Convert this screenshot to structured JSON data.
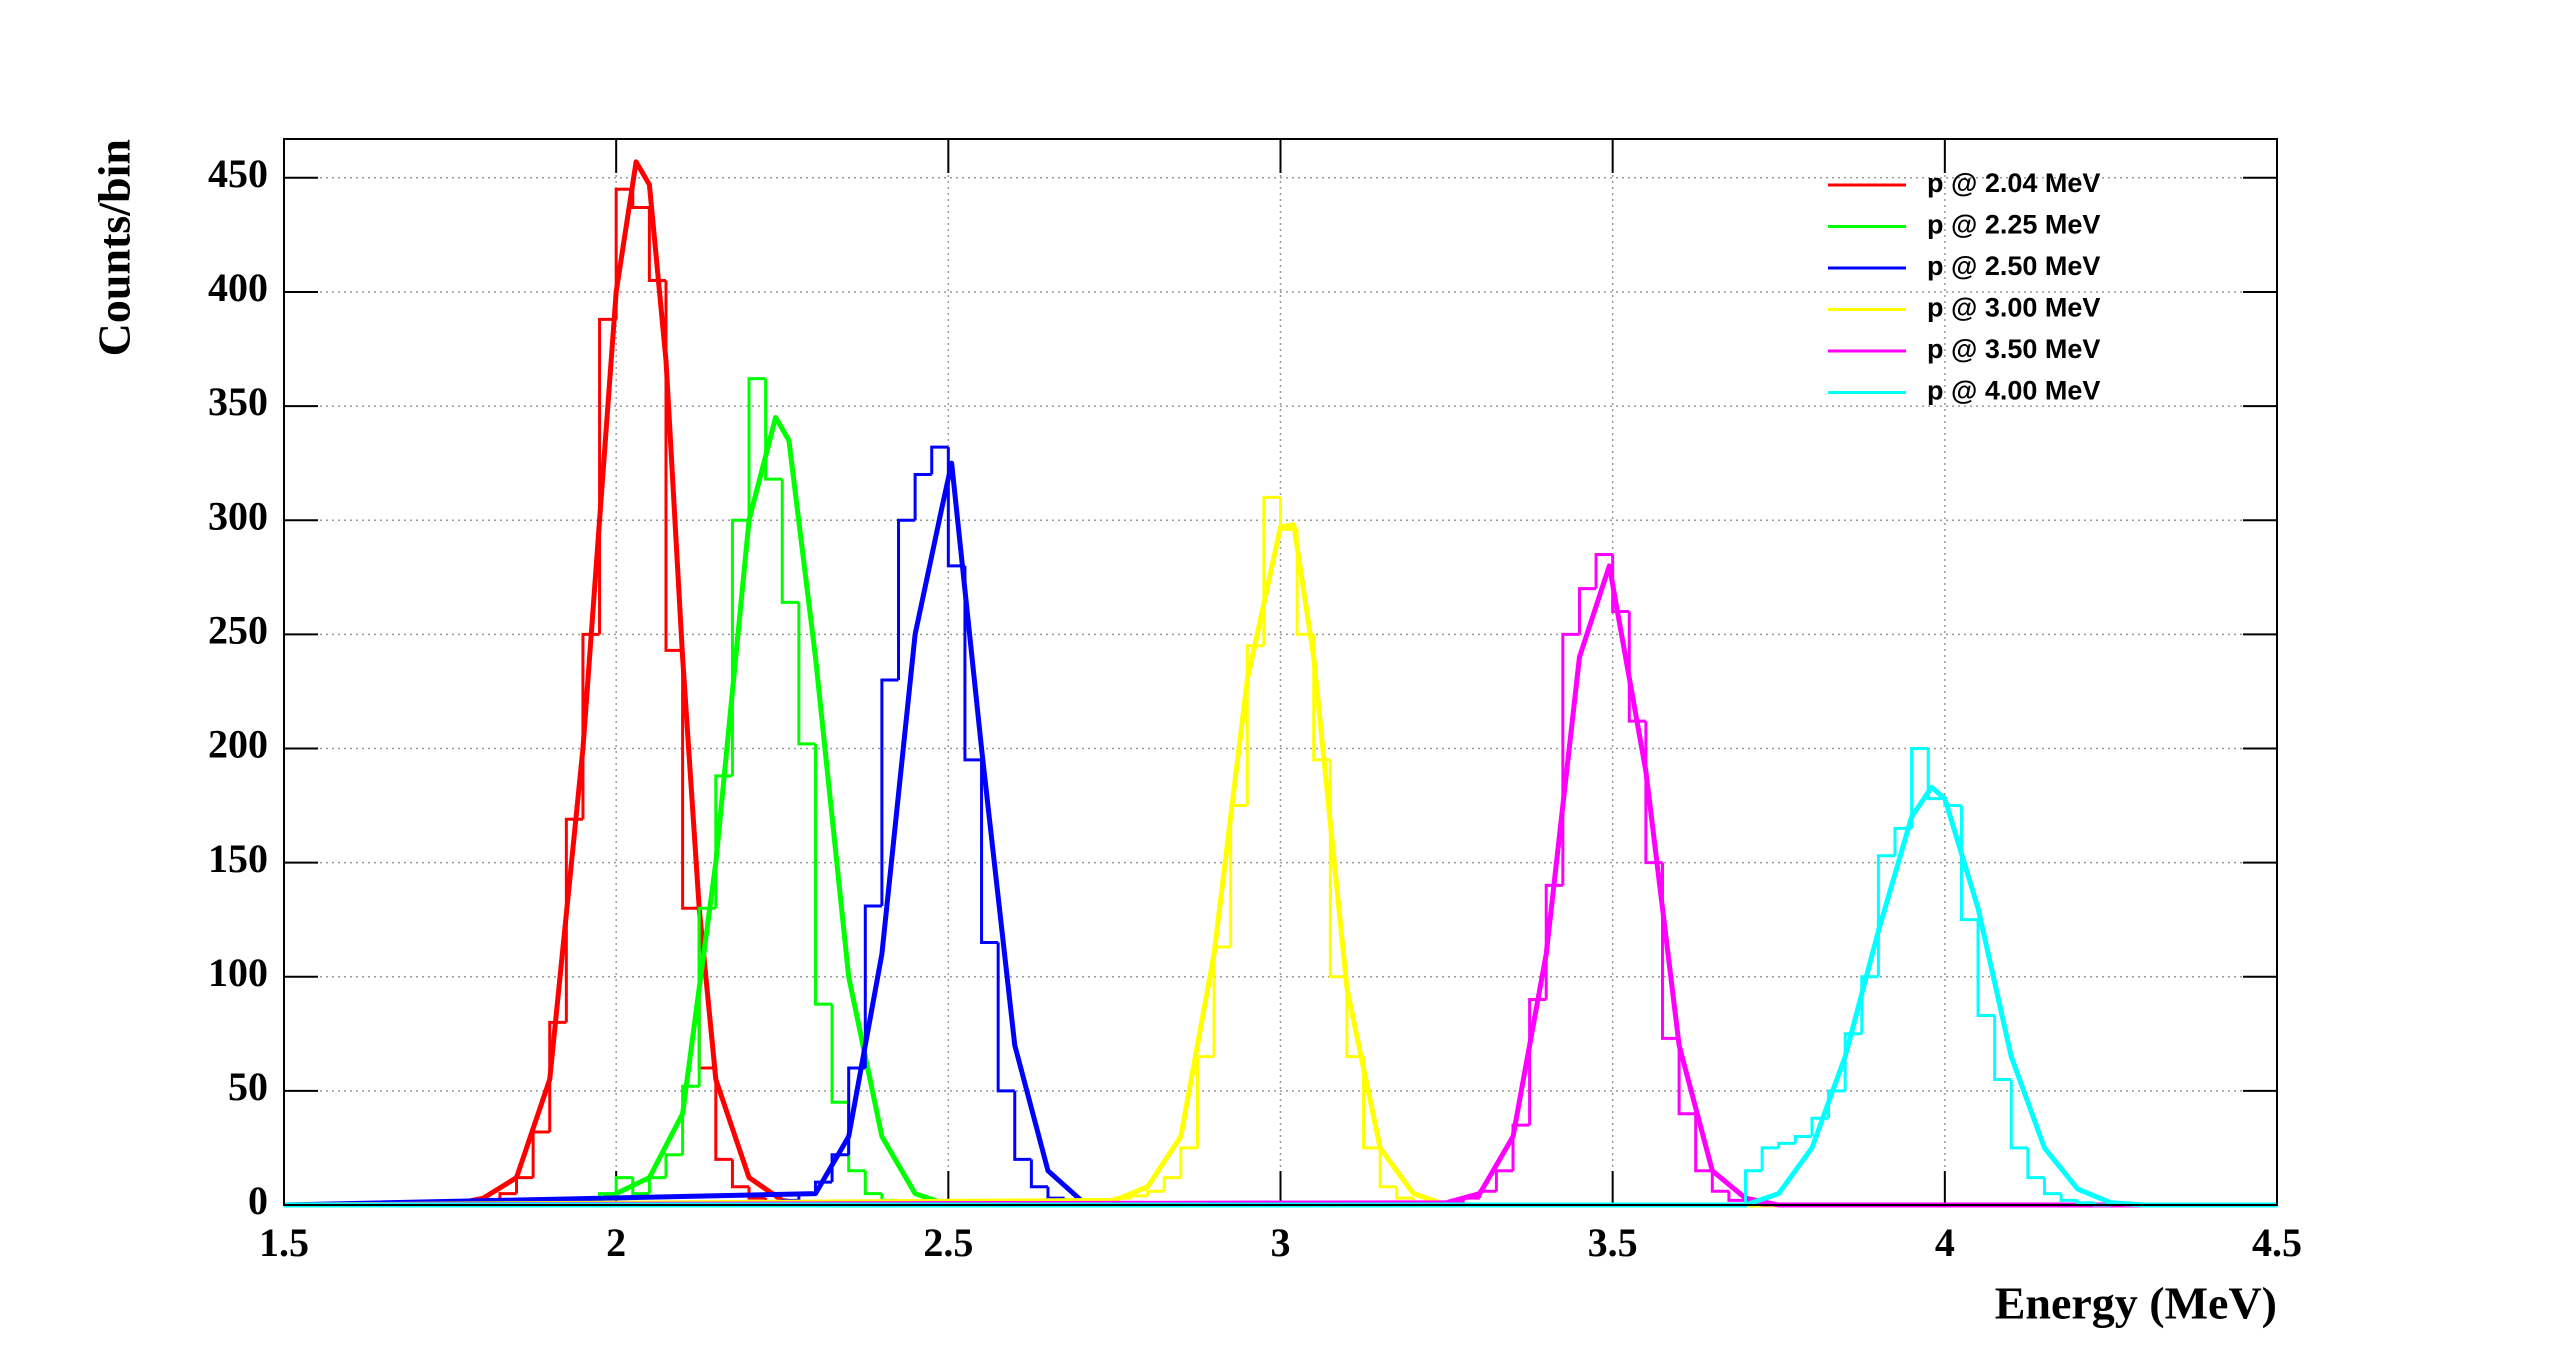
{
  "chart_data": {
    "type": "histogram",
    "xlabel": "Energy (MeV)",
    "ylabel": "Counts/bin",
    "xlim": [
      1.5,
      4.5
    ],
    "ylim": [
      0,
      467
    ],
    "xticks": [
      1.5,
      2,
      2.5,
      3,
      3.5,
      4,
      4.5
    ],
    "yticks": [
      0,
      50,
      100,
      150,
      200,
      250,
      300,
      350,
      400,
      450
    ],
    "grid": true,
    "legend": "top-right",
    "series": [
      {
        "name": "p @ 2.04 MeV",
        "color": "#ff0000",
        "bins": [
          1.8,
          1.825,
          1.85,
          1.875,
          1.9,
          1.925,
          1.95,
          1.975,
          2.0,
          2.025,
          2.05,
          2.075,
          2.1,
          2.125,
          2.15,
          2.175,
          2.2,
          2.225,
          2.25
        ],
        "values": [
          2,
          5,
          12,
          32,
          80,
          169,
          250,
          388,
          445,
          437,
          405,
          243,
          130,
          60,
          20,
          8,
          3,
          0
        ],
        "fit": {
          "x": [
            1.5,
            1.75,
            1.8,
            1.85,
            1.9,
            1.95,
            1.975,
            2.0,
            2.03,
            2.05,
            2.075,
            2.1,
            2.125,
            2.15,
            2.2,
            2.25,
            2.3,
            4.5
          ],
          "values": [
            0,
            0,
            3,
            12,
            55,
            200,
            300,
            400,
            457,
            447,
            370,
            240,
            130,
            55,
            12,
            2,
            0,
            0
          ]
        }
      },
      {
        "name": "p @ 2.25 MeV",
        "color": "#00ff00",
        "bins": [
          1.95,
          1.975,
          2.0,
          2.025,
          2.05,
          2.075,
          2.1,
          2.125,
          2.15,
          2.175,
          2.2,
          2.225,
          2.25,
          2.275,
          2.3,
          2.325,
          2.35,
          2.375,
          2.4,
          2.425,
          2.45
        ],
        "values": [
          3,
          5,
          12,
          5,
          12,
          22,
          52,
          130,
          188,
          300,
          362,
          318,
          264,
          202,
          88,
          45,
          15,
          5,
          2,
          0
        ],
        "fit": {
          "x": [
            1.5,
            1.95,
            2.0,
            2.05,
            2.1,
            2.15,
            2.2,
            2.24,
            2.26,
            2.3,
            2.35,
            2.4,
            2.45,
            2.5,
            4.5
          ],
          "values": [
            0,
            0,
            5,
            12,
            40,
            150,
            300,
            345,
            335,
            240,
            100,
            30,
            5,
            0,
            0
          ]
        }
      },
      {
        "name": "p @ 2.50 MeV",
        "color": "#0000ff",
        "bins": [
          2.25,
          2.275,
          2.3,
          2.325,
          2.35,
          2.375,
          2.4,
          2.425,
          2.45,
          2.475,
          2.5,
          2.525,
          2.55,
          2.575,
          2.6,
          2.625,
          2.65,
          2.675,
          2.7,
          2.725
        ],
        "values": [
          2,
          5,
          10,
          22,
          60,
          131,
          230,
          300,
          320,
          332,
          280,
          195,
          115,
          50,
          20,
          8,
          3,
          1,
          0
        ],
        "fit": {
          "x": [
            1.5,
            2.3,
            2.35,
            2.4,
            2.45,
            2.49,
            2.505,
            2.55,
            2.6,
            2.65,
            2.7,
            2.75,
            4.5
          ],
          "values": [
            0,
            5,
            30,
            110,
            250,
            305,
            325,
            200,
            70,
            15,
            2,
            0,
            0
          ]
        }
      },
      {
        "name": "p @ 3.00 MeV",
        "color": "#ffff00",
        "bins": [
          2.75,
          2.775,
          2.8,
          2.825,
          2.85,
          2.875,
          2.9,
          2.925,
          2.95,
          2.975,
          3.0,
          3.025,
          3.05,
          3.075,
          3.1,
          3.125,
          3.15,
          3.175,
          3.2,
          3.225,
          3.25
        ],
        "values": [
          3,
          4,
          6,
          12,
          25,
          65,
          113,
          175,
          245,
          310,
          296,
          250,
          195,
          100,
          65,
          25,
          8,
          3,
          1,
          0
        ],
        "fit": {
          "x": [
            1.5,
            2.75,
            2.8,
            2.85,
            2.9,
            2.95,
            3.0,
            3.02,
            3.05,
            3.1,
            3.15,
            3.2,
            3.25,
            4.5
          ],
          "values": [
            0,
            2,
            8,
            30,
            110,
            230,
            297,
            298,
            240,
            95,
            25,
            5,
            0,
            0
          ]
        }
      },
      {
        "name": "p @ 3.50 MeV",
        "color": "#ff00ff",
        "bins": [
          3.25,
          3.275,
          3.3,
          3.325,
          3.35,
          3.375,
          3.4,
          3.425,
          3.45,
          3.475,
          3.5,
          3.525,
          3.55,
          3.575,
          3.6,
          3.625,
          3.65,
          3.675,
          3.7,
          3.725,
          3.75
        ],
        "values": [
          1,
          3,
          6,
          15,
          35,
          90,
          140,
          250,
          270,
          285,
          260,
          212,
          150,
          73,
          40,
          15,
          6,
          2,
          1,
          0
        ],
        "fit": {
          "x": [
            1.5,
            3.25,
            3.3,
            3.35,
            3.4,
            3.45,
            3.495,
            3.55,
            3.6,
            3.65,
            3.7,
            3.75,
            4.5
          ],
          "values": [
            0,
            1,
            5,
            30,
            110,
            240,
            280,
            190,
            70,
            15,
            3,
            0,
            0
          ]
        }
      },
      {
        "name": "p @ 4.00 MeV",
        "color": "#00ffff",
        "bins": [
          3.7,
          3.725,
          3.75,
          3.775,
          3.8,
          3.825,
          3.85,
          3.875,
          3.9,
          3.925,
          3.95,
          3.975,
          4.0,
          4.025,
          4.05,
          4.075,
          4.1,
          4.125,
          4.15,
          4.175,
          4.2,
          4.225,
          4.25
        ],
        "values": [
          15,
          25,
          27,
          30,
          38,
          50,
          75,
          100,
          153,
          165,
          200,
          178,
          175,
          125,
          83,
          55,
          25,
          12,
          5,
          2,
          1,
          0
        ],
        "fit": {
          "x": [
            1.5,
            3.7,
            3.75,
            3.8,
            3.85,
            3.9,
            3.95,
            3.98,
            4.0,
            4.05,
            4.1,
            4.15,
            4.2,
            4.25,
            4.3,
            4.5
          ],
          "values": [
            0,
            0,
            5,
            25,
            65,
            120,
            170,
            183,
            178,
            130,
            65,
            25,
            7,
            1,
            0,
            0
          ]
        }
      }
    ]
  }
}
